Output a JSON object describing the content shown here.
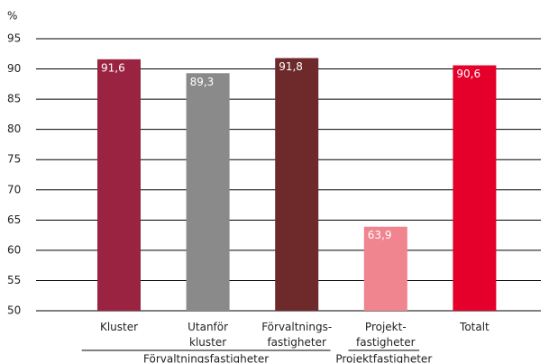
{
  "chart_data": {
    "type": "bar",
    "y_unit": "%",
    "categories": [
      [
        "Kluster"
      ],
      [
        "Utanför",
        "kluster"
      ],
      [
        "Förvaltnings-",
        "fastigheter"
      ],
      [
        "Projekt-",
        "fastigheter"
      ],
      [
        "Totalt"
      ]
    ],
    "values": [
      91.6,
      89.3,
      91.8,
      63.9,
      90.6
    ],
    "value_labels": [
      "91,6",
      "89,3",
      "91,8",
      "63,9",
      "90,6"
    ],
    "colors": [
      "#9b2342",
      "#8a8a8a",
      "#6e2a2a",
      "#f0848f",
      "#e4002b"
    ],
    "groups": [
      {
        "label": "Förvaltningsfastigheter",
        "from": 0,
        "to": 2
      },
      {
        "label": "Projektfastigheter",
        "from": 3,
        "to": 3
      }
    ],
    "ylim": [
      50,
      95
    ],
    "yticks": [
      50,
      55,
      60,
      65,
      70,
      75,
      80,
      85,
      90,
      95
    ],
    "grid": true
  }
}
